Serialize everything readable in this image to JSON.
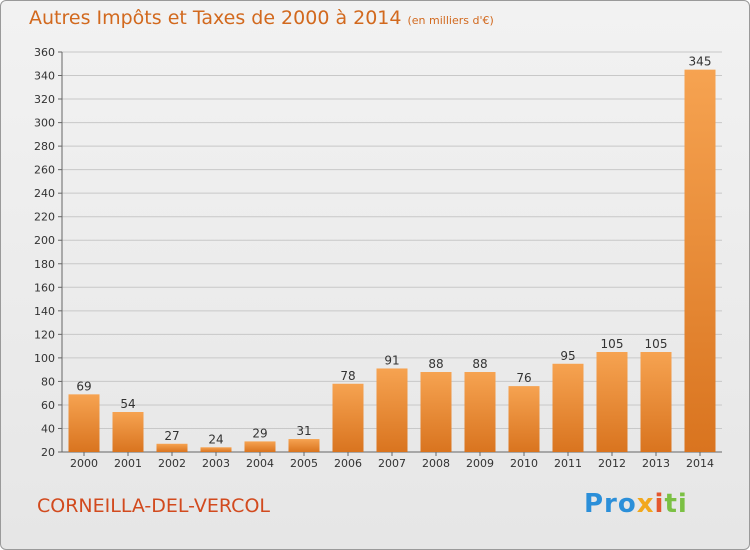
{
  "title": "Autres Impôts et Taxes de 2000 à 2014",
  "subtitle": "(en milliers d'€)",
  "place": "CORNEILLA-DEL-VERCOL",
  "logo": {
    "p1": "Pro",
    "p2": "x",
    "p3": "i",
    "p4": "ti"
  },
  "colors": {
    "bar_top": "#f6a351",
    "bar_bottom": "#d9741f",
    "grid": "#c8c8c8",
    "accent": "#d2691e"
  },
  "chart_data": {
    "type": "bar",
    "categories": [
      "2000",
      "2001",
      "2002",
      "2003",
      "2004",
      "2005",
      "2006",
      "2007",
      "2008",
      "2009",
      "2010",
      "2011",
      "2012",
      "2013",
      "2014"
    ],
    "values": [
      69,
      54,
      27,
      24,
      29,
      31,
      78,
      91,
      88,
      88,
      76,
      95,
      105,
      105,
      345
    ],
    "ylim": [
      20,
      360
    ],
    "yticks": [
      20,
      40,
      60,
      80,
      100,
      120,
      140,
      160,
      180,
      200,
      220,
      240,
      260,
      280,
      300,
      320,
      340,
      360
    ],
    "grid": true,
    "xlabel": "",
    "ylabel": ""
  }
}
